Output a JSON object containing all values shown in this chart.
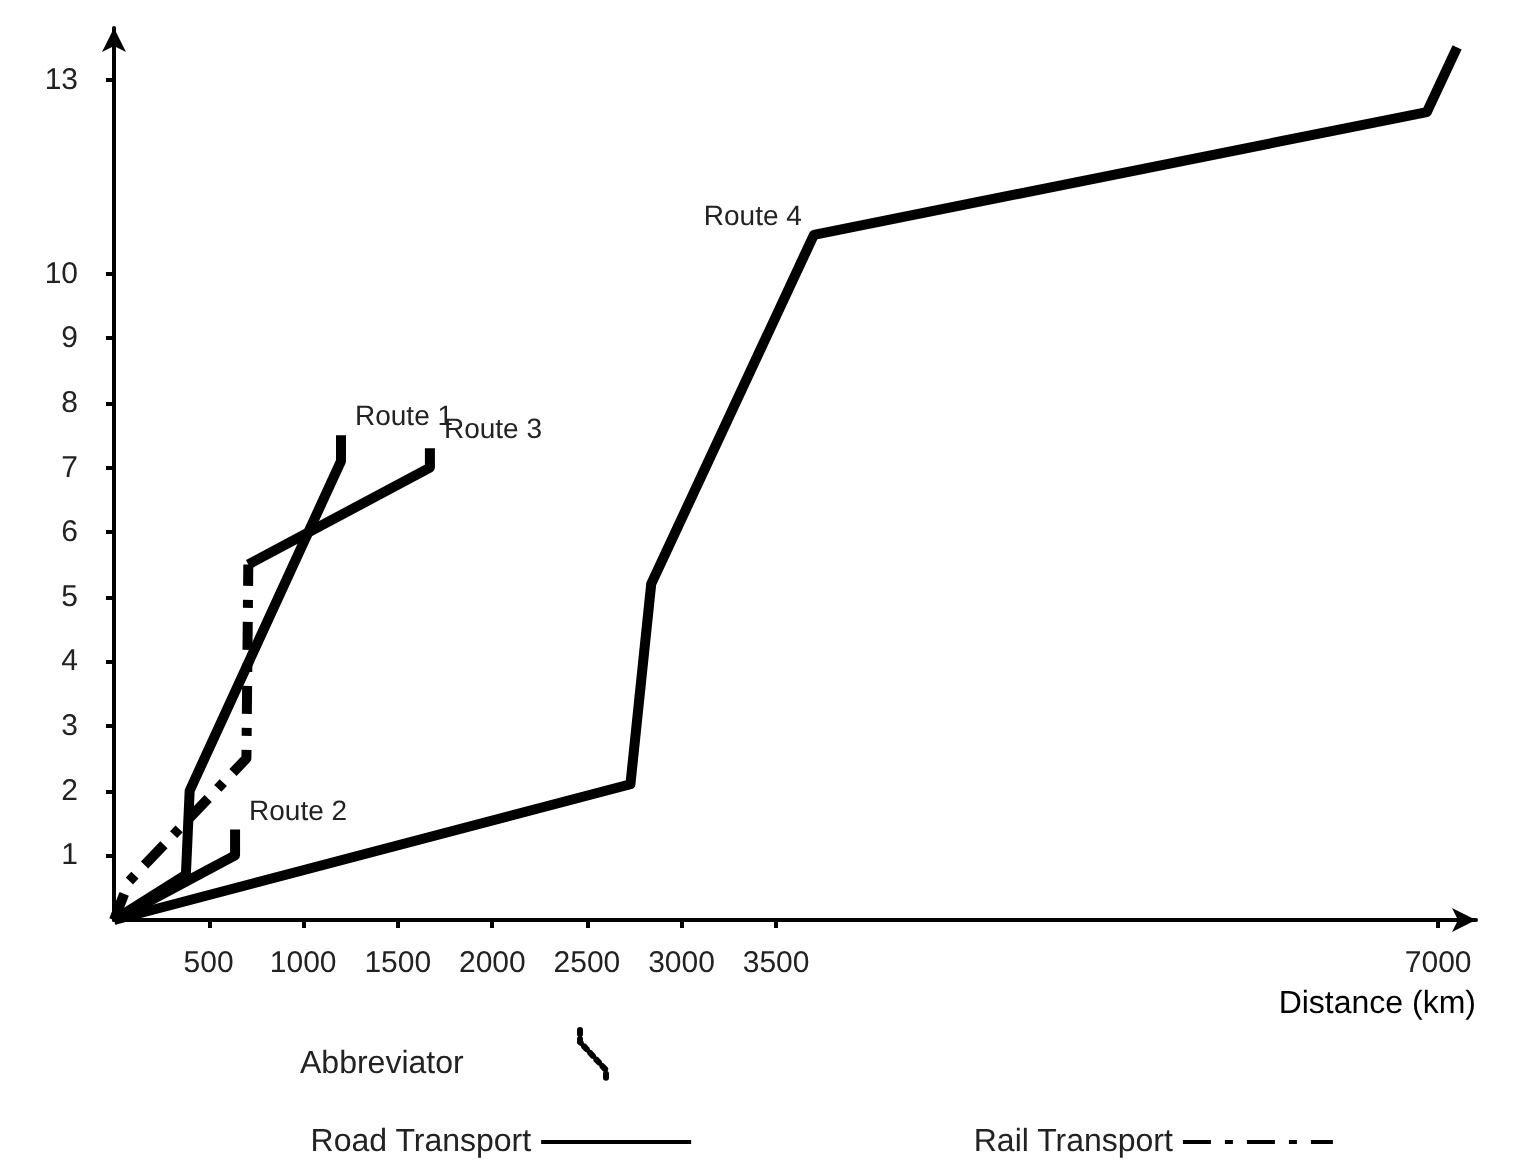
{
  "chart_data": {
    "type": "line",
    "xlabel": "Distance (km)",
    "xlim": [
      0,
      7200
    ],
    "xticks": [
      500,
      1000,
      1500,
      2000,
      2500,
      3000,
      3500,
      7000
    ],
    "ylim": [
      0,
      13.8
    ],
    "yticks": [
      1,
      2,
      3,
      4,
      5,
      6,
      7,
      8,
      9,
      10,
      13
    ],
    "grid": false,
    "legend": "bottom",
    "marker": "none",
    "annotations": [
      {
        "text": "Route 1",
        "x": 1200,
        "y": 7.5
      },
      {
        "text": "Route 2",
        "x": 640,
        "y": 1.4
      },
      {
        "text": "Route 3",
        "x": 1670,
        "y": 7.3
      },
      {
        "text": "Route 4",
        "x": 3700,
        "y": 10.6
      },
      "Abbreviator"
    ],
    "series": [
      {
        "name": "Road Transport",
        "color": "#000000",
        "line_style": "solid",
        "x": [
          0,
          380,
          400,
          1200,
          1200
        ],
        "values": [
          0,
          0.7,
          2.0,
          7.1,
          7.5
        ]
      },
      {
        "color": "#000000",
        "line_style": "solid",
        "x": [
          0,
          640,
          640
        ],
        "values": [
          0,
          1.0,
          1.4
        ]
      },
      {
        "name": "Rail Transport",
        "color": "#000000",
        "line_style": "dashed",
        "x": [
          0,
          80,
          700,
          710
        ],
        "values": [
          0,
          0.6,
          2.5,
          5.5
        ]
      },
      {
        "color": "#000000",
        "line_style": "solid",
        "x": [
          710,
          1670,
          1670
        ],
        "values": [
          5.5,
          7.0,
          7.3
        ]
      },
      {
        "color": "#000000",
        "line_style": "solid",
        "x": [
          0,
          2730,
          2840,
          3700,
          6940,
          7100
        ],
        "values": [
          0,
          2.1,
          5.2,
          10.6,
          12.5,
          13.5
        ]
      }
    ]
  }
}
